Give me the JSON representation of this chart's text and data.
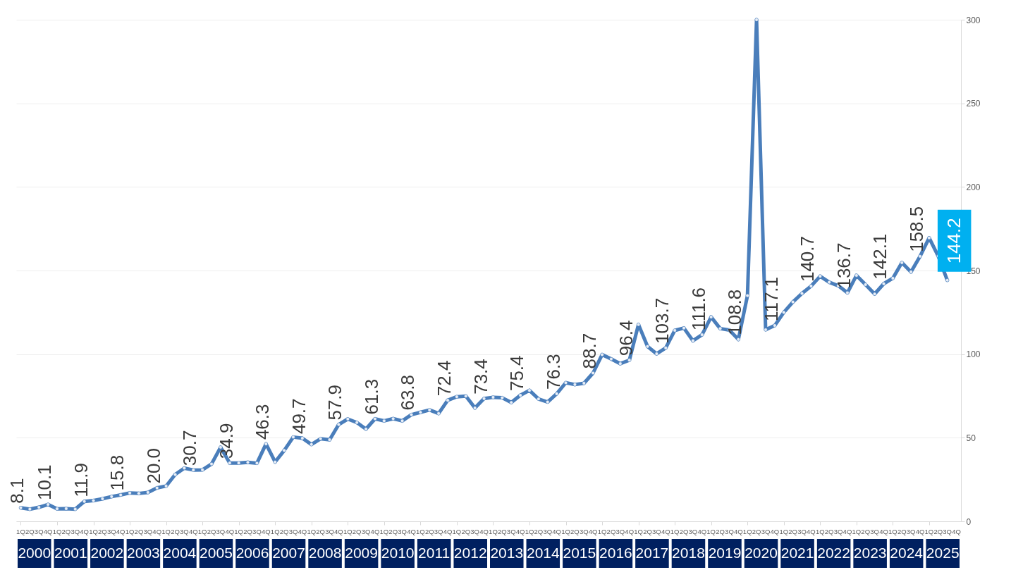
{
  "chart_data": {
    "type": "line",
    "categories": [
      "1Q",
      "2Q",
      "3Q",
      "4Q",
      "1Q",
      "2Q",
      "3Q",
      "4Q",
      "1Q",
      "2Q",
      "3Q",
      "4Q",
      "1Q",
      "2Q",
      "3Q",
      "4Q",
      "1Q",
      "2Q",
      "3Q",
      "4Q",
      "1Q",
      "2Q",
      "3Q",
      "4Q",
      "1Q",
      "2Q",
      "3Q",
      "4Q",
      "1Q",
      "2Q",
      "3Q",
      "4Q",
      "1Q",
      "2Q",
      "3Q",
      "4Q",
      "1Q",
      "2Q",
      "3Q",
      "4Q",
      "1Q",
      "2Q",
      "3Q",
      "4Q",
      "1Q",
      "2Q",
      "3Q",
      "4Q",
      "1Q",
      "2Q",
      "3Q",
      "4Q",
      "1Q",
      "2Q",
      "3Q",
      "4Q",
      "1Q",
      "2Q",
      "3Q",
      "4Q",
      "1Q",
      "2Q",
      "3Q",
      "4Q",
      "1Q",
      "2Q",
      "3Q",
      "4Q",
      "1Q",
      "2Q",
      "3Q",
      "4Q",
      "1Q",
      "2Q",
      "3Q",
      "4Q",
      "1Q",
      "2Q",
      "3Q",
      "4Q",
      "1Q",
      "2Q",
      "3Q",
      "4Q",
      "1Q",
      "2Q",
      "3Q",
      "4Q",
      "1Q",
      "2Q",
      "3Q",
      "4Q",
      "1Q",
      "2Q",
      "3Q",
      "4Q",
      "1Q",
      "2Q",
      "3Q",
      "4Q",
      "1Q",
      "2Q",
      "3Q",
      "4Q"
    ],
    "series": [
      {
        "color": "#4a7ebb",
        "values": [
          8.1,
          7.3,
          8.4,
          10.1,
          7.5,
          7.6,
          7.3,
          11.9,
          12.4,
          13.5,
          14.8,
          15.8,
          17.0,
          16.7,
          17.3,
          20.0,
          21.1,
          28.0,
          31.8,
          30.7,
          30.8,
          34.3,
          44.3,
          34.9,
          34.9,
          35.3,
          34.8,
          46.3,
          35.5,
          42.4,
          50.4,
          49.7,
          46.0,
          49.4,
          48.8,
          57.9,
          61.2,
          59.1,
          55.2,
          61.3,
          60.1,
          61.4,
          60.1,
          63.8,
          65.2,
          66.6,
          64.5,
          72.4,
          74.5,
          74.9,
          67.8,
          73.4,
          74.2,
          73.9,
          71.1,
          75.4,
          78.3,
          73.2,
          71.4,
          76.3,
          82.9,
          81.8,
          82.6,
          88.7,
          99.7,
          97.1,
          94.3,
          96.4,
          117.7,
          104.6,
          100.2,
          103.7,
          114.2,
          115.6,
          108.0,
          111.6,
          122.2,
          115.3,
          114.4,
          108.8,
          135.0,
          300.0,
          114.6,
          117.1,
          125.0,
          131.2,
          136.3,
          140.7,
          146.6,
          143.0,
          140.9,
          136.7,
          147.1,
          141.6,
          136.0,
          142.1,
          145.4,
          154.7,
          149.2,
          158.5,
          169.5,
          158.6,
          144.2,
          null
        ],
        "value_labels": [
          "8.1",
          null,
          null,
          "10.1",
          null,
          null,
          null,
          "11.9",
          null,
          null,
          null,
          "15.8",
          null,
          null,
          null,
          "20.0",
          null,
          null,
          null,
          "30.7",
          null,
          null,
          null,
          "34.9",
          null,
          null,
          null,
          "46.3",
          null,
          null,
          null,
          "49.7",
          null,
          null,
          null,
          "57.9",
          null,
          null,
          null,
          "61.3",
          null,
          null,
          null,
          "63.8",
          null,
          null,
          null,
          "72.4",
          null,
          null,
          null,
          "73.4",
          null,
          null,
          null,
          "75.4",
          null,
          null,
          null,
          "76.3",
          null,
          null,
          null,
          "88.7",
          null,
          null,
          null,
          "96.4",
          null,
          null,
          null,
          "103.7",
          null,
          null,
          null,
          "111.6",
          null,
          null,
          null,
          "108.8",
          null,
          null,
          null,
          "117.1",
          null,
          null,
          null,
          "140.7",
          null,
          null,
          null,
          "136.7",
          null,
          null,
          null,
          "142.1",
          null,
          null,
          null,
          "158.5",
          null,
          null,
          "144.2",
          null
        ]
      }
    ],
    "ylim": [
      0,
      300
    ],
    "yticks": [
      0,
      50,
      100,
      150,
      200,
      250,
      300
    ],
    "grid": "y",
    "marker": "circle",
    "line_style": "solid",
    "annotations": [
      "2000",
      "2001",
      "2002",
      "2003",
      "2004",
      "2005",
      "2006",
      "2007",
      "2008",
      "2009",
      "2010",
      "2011",
      "2012",
      "2013",
      "2014",
      "2015",
      "2016",
      "2017",
      "2018",
      "2019",
      "2020",
      "2021",
      "2022",
      "2023",
      "2024",
      "2025"
    ]
  }
}
